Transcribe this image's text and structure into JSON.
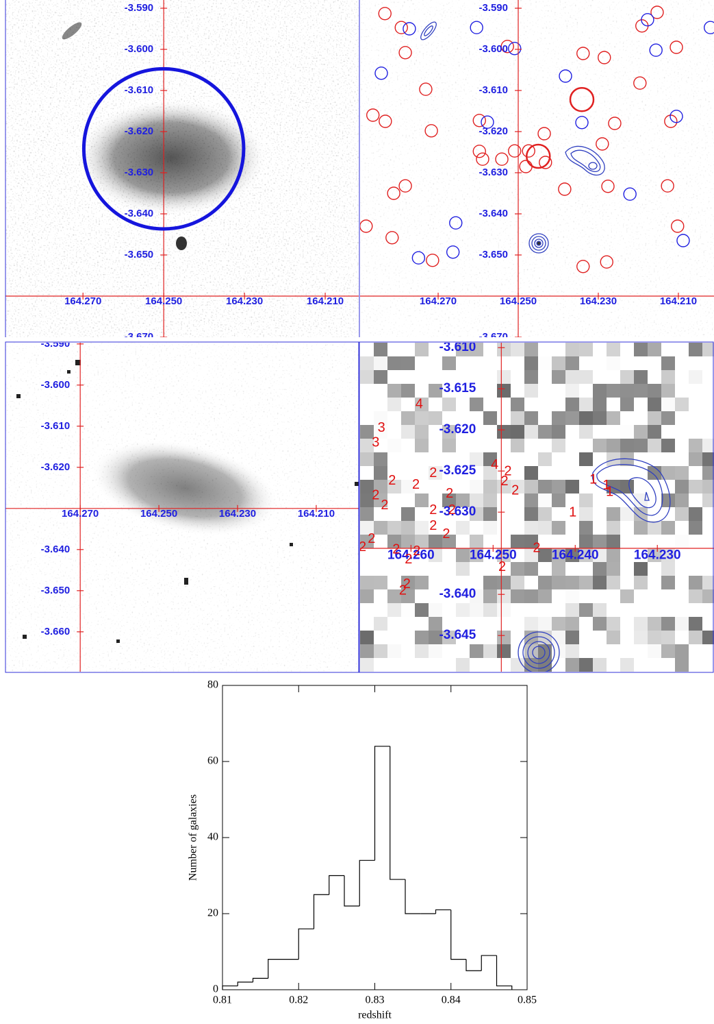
{
  "chart_data": [
    {
      "type": "image",
      "xlim": [
        164.2892,
        164.2017
      ],
      "ylim": [
        -3.67,
        -3.588
      ],
      "axis_cross": [
        164.25,
        -3.66
      ],
      "xticks": [
        {
          "value": 164.27,
          "label": "164.270"
        },
        {
          "value": 164.25,
          "label": "164.250"
        },
        {
          "value": 164.23,
          "label": "164.230"
        },
        {
          "value": 164.21,
          "label": "164.210"
        }
      ],
      "yticks": [
        {
          "value": -3.59,
          "label": "-3.590"
        },
        {
          "value": -3.6,
          "label": "-3.600"
        },
        {
          "value": -3.61,
          "label": "-3.610"
        },
        {
          "value": -3.62,
          "label": "-3.620"
        },
        {
          "value": -3.63,
          "label": "-3.630"
        },
        {
          "value": -3.64,
          "label": "-3.640"
        },
        {
          "value": -3.65,
          "label": "-3.650"
        },
        {
          "value": -3.67,
          "label": "-3.670"
        }
      ],
      "circle": {
        "x": 164.25,
        "y": -3.6242,
        "r": 0.0198,
        "color": "#1515dd"
      }
    },
    {
      "type": "image",
      "xlim": [
        164.2895,
        164.2011
      ],
      "ylim": [
        -3.67,
        -3.588
      ],
      "axis_cross": [
        164.25,
        -3.66
      ],
      "xticks": [
        {
          "value": 164.27,
          "label": "164.270"
        },
        {
          "value": 164.25,
          "label": "164.250"
        },
        {
          "value": 164.23,
          "label": "164.230"
        },
        {
          "value": 164.21,
          "label": "164.210"
        }
      ],
      "yticks": [
        {
          "value": -3.59,
          "label": "-3.590"
        },
        {
          "value": -3.6,
          "label": "-3.600"
        },
        {
          "value": -3.61,
          "label": "-3.610"
        },
        {
          "value": -3.62,
          "label": "-3.620"
        },
        {
          "value": -3.63,
          "label": "-3.630"
        },
        {
          "value": -3.64,
          "label": "-3.640"
        },
        {
          "value": -3.65,
          "label": "-3.650"
        },
        {
          "value": -3.67,
          "label": "-3.670"
        }
      ],
      "series": [
        {
          "color": "#e02020",
          "marker": "circle",
          "x": [
            164.2833,
            164.2792,
            164.2782,
            164.2731,
            164.2863,
            164.2832,
            164.2717,
            164.2597,
            164.2597,
            164.2509,
            164.2589,
            164.2474,
            164.2435,
            164.2481,
            164.2432,
            164.2541,
            164.2811,
            164.2782,
            164.288,
            164.2815,
            164.2714,
            164.2527,
            164.2338,
            164.2285,
            164.2259,
            164.229,
            164.2384,
            164.2276,
            164.2191,
            164.2153,
            164.2105,
            164.2196,
            164.2119,
            164.2127,
            164.2102,
            164.2338,
            164.2279
          ],
          "y": [
            -3.5913,
            -3.5947,
            -3.6008,
            -3.6097,
            -3.616,
            -3.6175,
            -3.6198,
            -3.6173,
            -3.6248,
            -3.6247,
            -3.6267,
            -3.6247,
            -3.6205,
            -3.6285,
            -3.6275,
            -3.6267,
            -3.635,
            -3.6332,
            -3.643,
            -3.6458,
            -3.6513,
            -3.5993,
            -3.601,
            -3.602,
            -3.618,
            -3.623,
            -3.634,
            -3.6333,
            -3.5943,
            -3.591,
            -3.5995,
            -3.6082,
            -3.6175,
            -3.6332,
            -3.643,
            -3.6528,
            -3.6517
          ]
        },
        {
          "color": "#e02020",
          "marker": "large-circle",
          "x": [
            164.245,
            164.2341
          ],
          "y": [
            -3.626,
            -3.6122
          ]
        },
        {
          "color": "#2020e0",
          "marker": "circle",
          "x": [
            164.2772,
            164.2842,
            164.2604,
            164.2509,
            164.2382,
            164.2577,
            164.2341,
            164.2105,
            164.2221,
            164.2177,
            164.2156,
            164.202,
            164.2656,
            164.2749,
            164.2663,
            164.2088
          ],
          "y": [
            -3.595,
            -3.6058,
            -3.5947,
            -3.5998,
            -3.6065,
            -3.6177,
            -3.6178,
            -3.6163,
            -3.6352,
            -3.5928,
            -3.6002,
            -3.5947,
            -3.6422,
            -3.6507,
            -3.6493,
            -3.6465
          ]
        }
      ]
    },
    {
      "type": "image",
      "xlim": [
        164.289,
        164.1992
      ],
      "ylim": [
        -3.6697,
        -3.5897
      ],
      "axis_cross": [
        164.27,
        -3.63
      ],
      "xticks": [
        {
          "value": 164.27,
          "label": "164.270"
        },
        {
          "value": 164.25,
          "label": "164.250"
        },
        {
          "value": 164.23,
          "label": "164.230"
        },
        {
          "value": 164.21,
          "label": "164.210"
        }
      ],
      "yticks": [
        {
          "value": -3.59,
          "label": "-3.590"
        },
        {
          "value": -3.6,
          "label": "-3.600"
        },
        {
          "value": -3.61,
          "label": "-3.610"
        },
        {
          "value": -3.62,
          "label": "-3.620"
        },
        {
          "value": -3.64,
          "label": "-3.640"
        },
        {
          "value": -3.65,
          "label": "-3.650"
        },
        {
          "value": -3.66,
          "label": "-3.660"
        }
      ]
    },
    {
      "type": "image",
      "xlim": [
        164.2662,
        164.2231
      ],
      "ylim": [
        -3.6494,
        -3.6094
      ],
      "axis_cross": [
        164.249,
        -3.6344
      ],
      "xticks": [
        {
          "value": 164.26,
          "label": "164.260"
        },
        {
          "value": 164.25,
          "label": "164.250"
        },
        {
          "value": 164.24,
          "label": "164.240"
        },
        {
          "value": 164.23,
          "label": "164.230"
        }
      ],
      "yticks": [
        {
          "value": -3.61,
          "label": "-3.610"
        },
        {
          "value": -3.615,
          "label": "-3.615"
        },
        {
          "value": -3.62,
          "label": "-3.620"
        },
        {
          "value": -3.625,
          "label": "-3.625"
        },
        {
          "value": -3.63,
          "label": "-3.630"
        },
        {
          "value": -3.64,
          "label": "-3.640"
        },
        {
          "value": -3.645,
          "label": "-3.645"
        }
      ],
      "labels": [
        {
          "text": "4",
          "x": 164.259,
          "y": -3.6169
        },
        {
          "text": "3",
          "x": 164.2636,
          "y": -3.6198
        },
        {
          "text": "3",
          "x": 164.2643,
          "y": -3.6216
        },
        {
          "text": "2",
          "x": 164.2623,
          "y": -3.6262
        },
        {
          "text": "2",
          "x": 164.2643,
          "y": -3.628
        },
        {
          "text": "2",
          "x": 164.2632,
          "y": -3.6292
        },
        {
          "text": "2",
          "x": 164.2594,
          "y": -3.6267
        },
        {
          "text": "2",
          "x": 164.2573,
          "y": -3.6253
        },
        {
          "text": "2",
          "x": 164.2553,
          "y": -3.6278
        },
        {
          "text": "2",
          "x": 164.2573,
          "y": -3.6298
        },
        {
          "text": "2",
          "x": 164.2557,
          "y": -3.6327
        },
        {
          "text": "2",
          "x": 164.2573,
          "y": -3.6317
        },
        {
          "text": "2",
          "x": 164.255,
          "y": -3.6298
        },
        {
          "text": "2",
          "x": 164.2648,
          "y": -3.6333
        },
        {
          "text": "2",
          "x": 164.2659,
          "y": -3.6343
        },
        {
          "text": "2",
          "x": 164.2618,
          "y": -3.6346
        },
        {
          "text": "2",
          "x": 164.2593,
          "y": -3.6348
        },
        {
          "text": "2",
          "x": 164.2603,
          "y": -3.6358
        },
        {
          "text": "2",
          "x": 164.2489,
          "y": -3.6367
        },
        {
          "text": "2",
          "x": 164.2605,
          "y": -3.6388
        },
        {
          "text": "2",
          "x": 164.261,
          "y": -3.6396
        },
        {
          "text": "4",
          "x": 164.2498,
          "y": -3.6243
        },
        {
          "text": "2",
          "x": 164.2482,
          "y": -3.6251
        },
        {
          "text": "2",
          "x": 164.2486,
          "y": -3.6263
        },
        {
          "text": "2",
          "x": 164.2473,
          "y": -3.6274
        },
        {
          "text": "2",
          "x": 164.2447,
          "y": -3.6344
        },
        {
          "text": "1",
          "x": 164.2403,
          "y": -3.6301
        },
        {
          "text": "1",
          "x": 164.2378,
          "y": -3.6261
        },
        {
          "text": "1",
          "x": 164.2362,
          "y": -3.6268
        },
        {
          "text": "1",
          "x": 164.2358,
          "y": -3.6276
        }
      ]
    },
    {
      "type": "histogram",
      "xlabel": "redshift",
      "ylabel": "Number of galaxies",
      "color": "#000000",
      "bins": [
        0.81,
        0.812,
        0.814,
        0.816,
        0.818,
        0.82,
        0.822,
        0.824,
        0.826,
        0.828,
        0.83,
        0.832,
        0.834,
        0.836,
        0.838,
        0.84,
        0.842,
        0.844,
        0.846,
        0.848
      ],
      "values": [
        1,
        2,
        3,
        8,
        8,
        16,
        25,
        30,
        22,
        34,
        64,
        29,
        20,
        20,
        21,
        8,
        5,
        9,
        1
      ],
      "xlim": [
        0.81,
        0.85
      ],
      "ylim": [
        0,
        80
      ],
      "xticks": [
        0.81,
        0.82,
        0.83,
        0.84,
        0.85
      ],
      "yticks": [
        0,
        20,
        40,
        60,
        80
      ]
    }
  ]
}
